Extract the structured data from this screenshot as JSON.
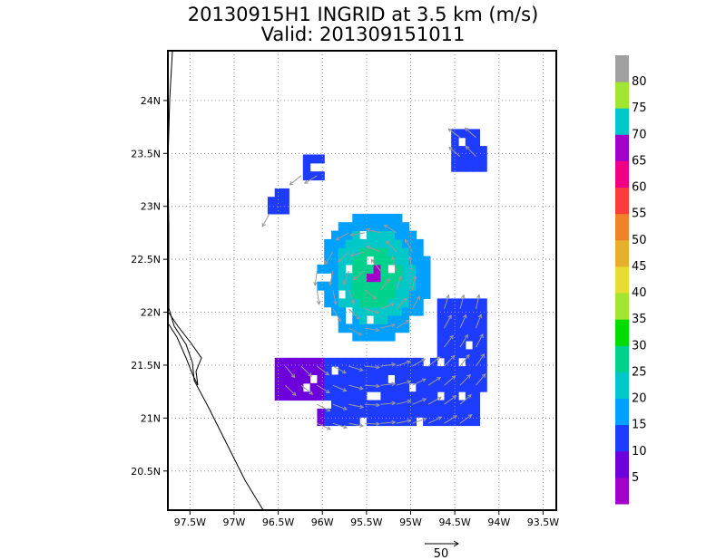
{
  "chart_data": {
    "type": "heatmap",
    "title": "20130915H1 INGRID at 3.5 km (m/s)",
    "subtitle": "Valid: 201309151011",
    "x_ticks": [
      "97.5W",
      "97W",
      "96.5W",
      "96W",
      "95.5W",
      "95W",
      "94.5W",
      "94W",
      "93.5W"
    ],
    "x_values": [
      -97.5,
      -97.0,
      -96.5,
      -96.0,
      -95.5,
      -95.0,
      -94.5,
      -94.0,
      -93.5
    ],
    "y_ticks": [
      "20.5N",
      "21N",
      "21.5N",
      "22N",
      "22.5N",
      "23N",
      "23.5N",
      "24N"
    ],
    "y_values": [
      20.5,
      21.0,
      21.5,
      22.0,
      22.5,
      23.0,
      23.5,
      24.0
    ],
    "xlim": [
      -97.75,
      -93.35
    ],
    "ylim": [
      20.13,
      24.47
    ],
    "grid": true,
    "colorbar": {
      "labels": [
        "5",
        "10",
        "15",
        "20",
        "25",
        "30",
        "35",
        "40",
        "45",
        "50",
        "55",
        "60",
        "65",
        "70",
        "75",
        "80"
      ],
      "colors": [
        "#a000c8",
        "#6e00dc",
        "#1e3cff",
        "#00a0ff",
        "#00c8c8",
        "#00d28c",
        "#00dc00",
        "#a0e632",
        "#e6dc32",
        "#e6af2d",
        "#f08228",
        "#fa3c3c",
        "#f00082",
        "#a000c8",
        "#00c8c8",
        "#a0e632",
        "#a0a0a0"
      ]
    },
    "vector_reference": {
      "value": "50"
    },
    "wind_field": {
      "center": [
        -95.45,
        22.3
      ],
      "pixel_step_deg": 0.08,
      "cells": [
        {
          "lon": -95.4,
          "lat": 22.3,
          "speed": 27
        },
        {
          "lon": -95.0,
          "lat": 22.6,
          "speed": 24
        },
        {
          "lon": -95.0,
          "lat": 21.9,
          "speed": 22
        },
        {
          "lon": -94.6,
          "lat": 21.4,
          "speed": 12
        },
        {
          "lon": -95.8,
          "lat": 21.1,
          "speed": 11
        },
        {
          "lon": -96.4,
          "lat": 21.35,
          "speed": 5
        },
        {
          "lon": -94.5,
          "lat": 23.5,
          "speed": 10
        },
        {
          "lon": -96.1,
          "lat": 23.3,
          "speed": 10
        }
      ]
    }
  }
}
